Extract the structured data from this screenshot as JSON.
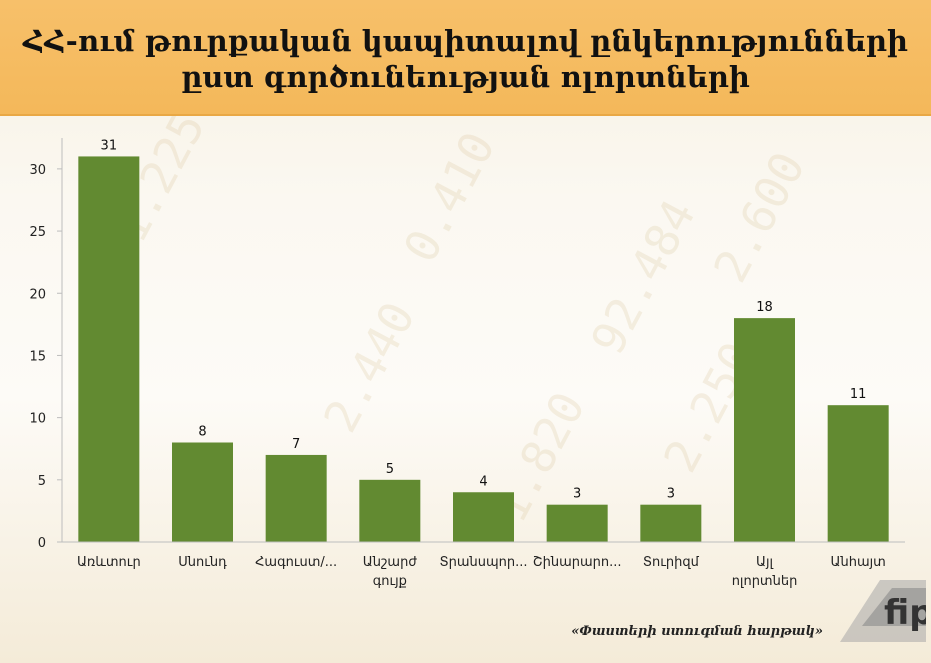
{
  "chart_data": {
    "type": "bar",
    "title_lines": [
      "ՀՀ-ում թուրքական կապիտալով ընկերությունների",
      "ըստ գործունեության ոլորտների"
    ],
    "xlabel": "",
    "ylabel": "",
    "categories": [
      [
        "Առևտուր"
      ],
      [
        "Սնունդ"
      ],
      [
        "Հագուստ/..."
      ],
      [
        "Անշարժ",
        "գույք"
      ],
      [
        "Տրանսպոր..."
      ],
      [
        "Շինարարո..."
      ],
      [
        "Տուրիզմ"
      ],
      [
        "Այլ",
        "ոլորտներ"
      ],
      [
        "Անհայտ"
      ]
    ],
    "values": [
      31,
      8,
      7,
      5,
      4,
      3,
      3,
      18,
      11
    ],
    "ylim": [
      0,
      32
    ],
    "yticks": [
      0,
      5,
      10,
      15,
      20,
      25,
      30
    ],
    "grid": false,
    "legend": "none",
    "bar_color": "#628a31"
  },
  "footer": {
    "source": "«Փաստերի ստուգման հարթակ»",
    "logo_text": "fip"
  },
  "colors": {
    "header_bg": "#f5bb60",
    "bar": "#628a31"
  }
}
